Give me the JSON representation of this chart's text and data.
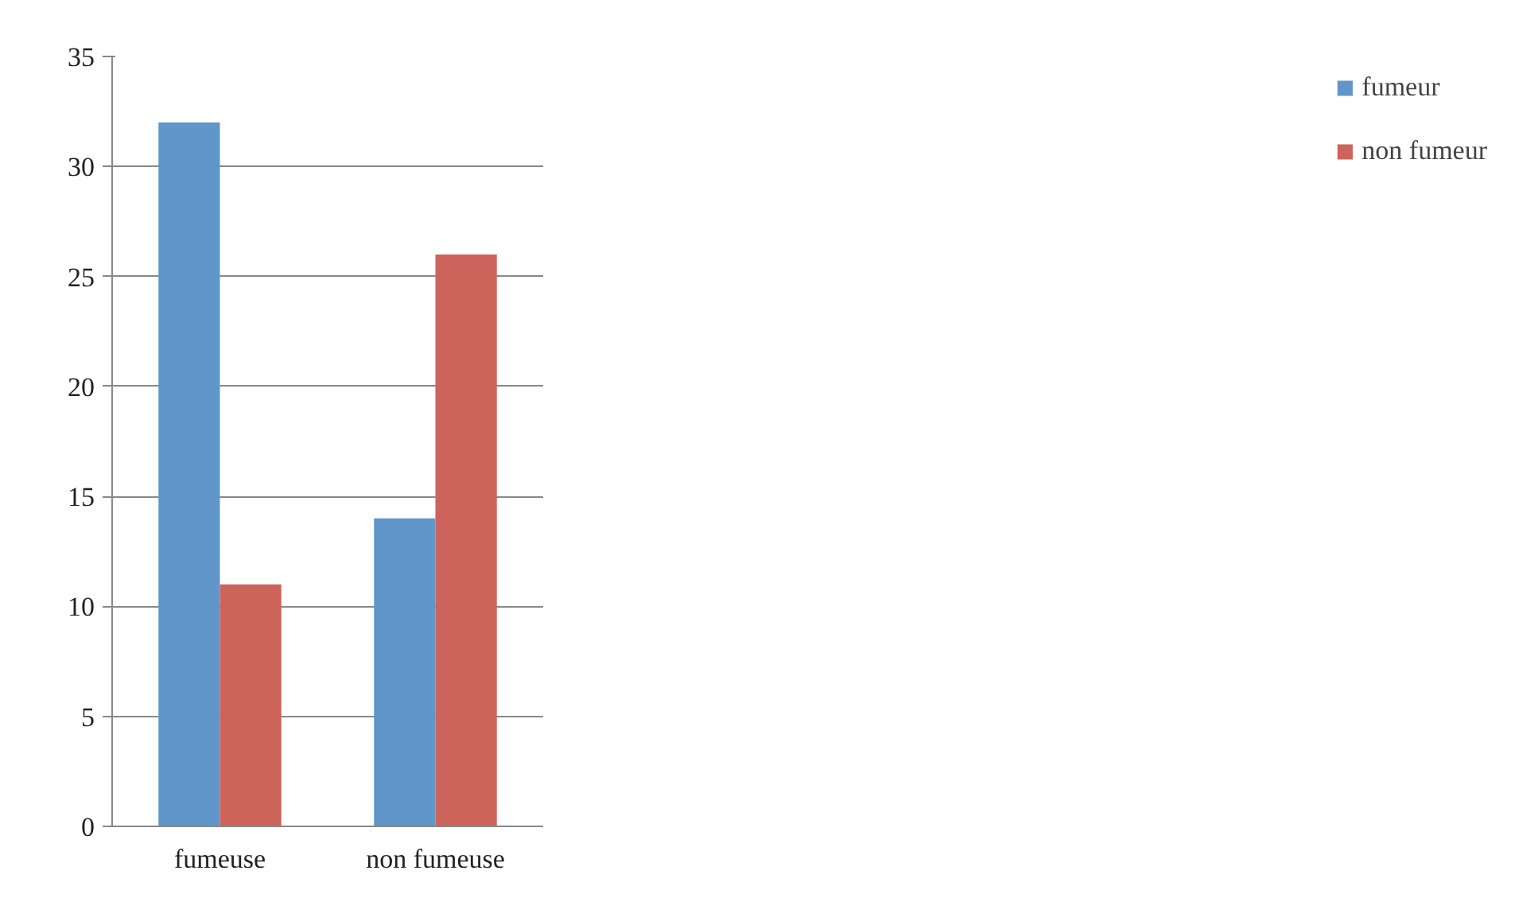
{
  "chart_data": {
    "type": "bar",
    "categories": [
      "fumeuse",
      "non fumeuse"
    ],
    "series": [
      {
        "name": "fumeur",
        "color": "#6096c9",
        "values": [
          32,
          14
        ]
      },
      {
        "name": "non fumeur",
        "color": "#cc645c",
        "values": [
          11,
          26
        ]
      }
    ],
    "ylim": [
      0,
      35
    ],
    "yticks": [
      0,
      5,
      10,
      15,
      20,
      25,
      30,
      35
    ],
    "grid": "y",
    "legend": "right"
  }
}
